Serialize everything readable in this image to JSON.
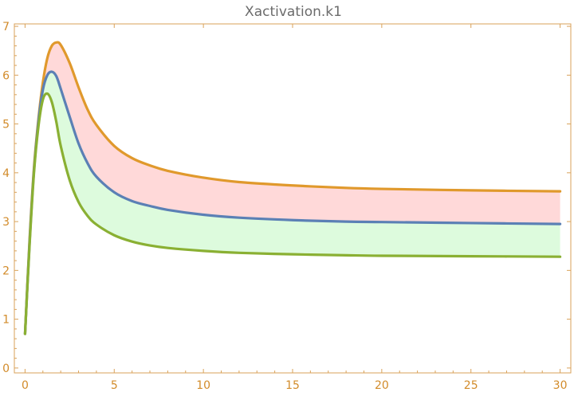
{
  "chart_data": {
    "type": "line",
    "title": "Xactivation.k1",
    "xlabel": "",
    "ylabel": "",
    "xlim": [
      -0.6,
      30.6
    ],
    "ylim": [
      -0.1,
      7.05
    ],
    "x_ticks": [
      0,
      5,
      10,
      15,
      20,
      25,
      30
    ],
    "y_ticks": [
      0,
      1,
      2,
      3,
      4,
      5,
      6,
      7
    ],
    "grid": false,
    "legend": "none",
    "x": [
      0,
      0.25,
      0.5,
      0.75,
      1,
      1.25,
      1.5,
      1.75,
      2,
      2.5,
      3,
      3.5,
      4,
      5,
      6,
      7,
      8,
      10,
      12,
      15,
      18,
      20,
      25,
      30
    ],
    "series": [
      {
        "color": "#e0992c",
        "values": [
          0.7,
          2.6,
          4.1,
          5.1,
          5.85,
          6.35,
          6.6,
          6.67,
          6.62,
          6.25,
          5.75,
          5.3,
          4.98,
          4.55,
          4.3,
          4.15,
          4.04,
          3.9,
          3.81,
          3.74,
          3.69,
          3.67,
          3.64,
          3.62
        ]
      },
      {
        "color": "#5b80b5",
        "values": [
          0.7,
          2.55,
          4.05,
          5.05,
          5.7,
          6.0,
          6.07,
          5.98,
          5.72,
          5.15,
          4.6,
          4.2,
          3.92,
          3.6,
          3.42,
          3.32,
          3.24,
          3.14,
          3.08,
          3.03,
          3.0,
          2.99,
          2.97,
          2.95
        ]
      },
      {
        "color": "#8ab033",
        "values": [
          0.7,
          2.5,
          4.0,
          4.95,
          5.5,
          5.62,
          5.45,
          5.05,
          4.55,
          3.85,
          3.4,
          3.12,
          2.94,
          2.72,
          2.59,
          2.51,
          2.46,
          2.4,
          2.36,
          2.33,
          2.31,
          2.3,
          2.29,
          2.28
        ]
      }
    ],
    "bands": [
      {
        "between": [
          0,
          1
        ],
        "color": "#ffd9d9"
      },
      {
        "between": [
          1,
          2
        ],
        "color": "#ddfbdd"
      }
    ]
  }
}
